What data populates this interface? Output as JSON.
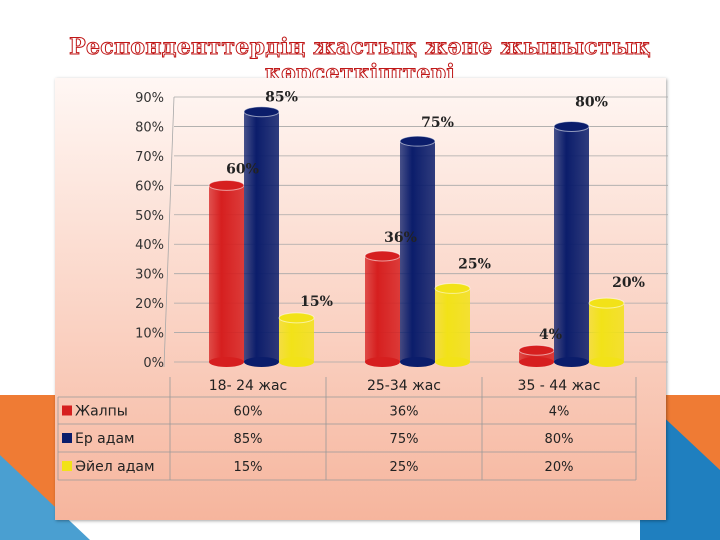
{
  "slide": {
    "title": "Респонденттердің жастық және жыныстық көрсеткіштері"
  },
  "colors": {
    "series": [
      "#d61f1f",
      "#0b1d6b",
      "#f2e218"
    ],
    "accent_orange": "#ef7b34",
    "accent_blue": "#1f7fbf"
  },
  "chart_data": {
    "type": "bar",
    "title": "",
    "xlabel": "",
    "ylabel": "",
    "categories": [
      "18- 24 жас",
      "25-34   жас",
      "35 - 44 жас"
    ],
    "series": [
      {
        "name": "Жалпы",
        "values": [
          60,
          36,
          4
        ],
        "labels": [
          "60%",
          "36%",
          "4%"
        ]
      },
      {
        "name": "Ер адам",
        "values": [
          85,
          75,
          80
        ],
        "labels": [
          "85%",
          "75%",
          "80%"
        ]
      },
      {
        "name": "Әйел адам",
        "values": [
          15,
          25,
          20
        ],
        "labels": [
          "15%",
          "25%",
          "20%"
        ]
      }
    ],
    "ylim": [
      0,
      90
    ],
    "yticks": [
      0,
      10,
      20,
      30,
      40,
      50,
      60,
      70,
      80,
      90
    ],
    "ytick_labels": [
      "0%",
      "10%",
      "20%",
      "30%",
      "40%",
      "50%",
      "60%",
      "70%",
      "80%",
      "90%"
    ],
    "grid": true,
    "legend": "data table below plot"
  }
}
